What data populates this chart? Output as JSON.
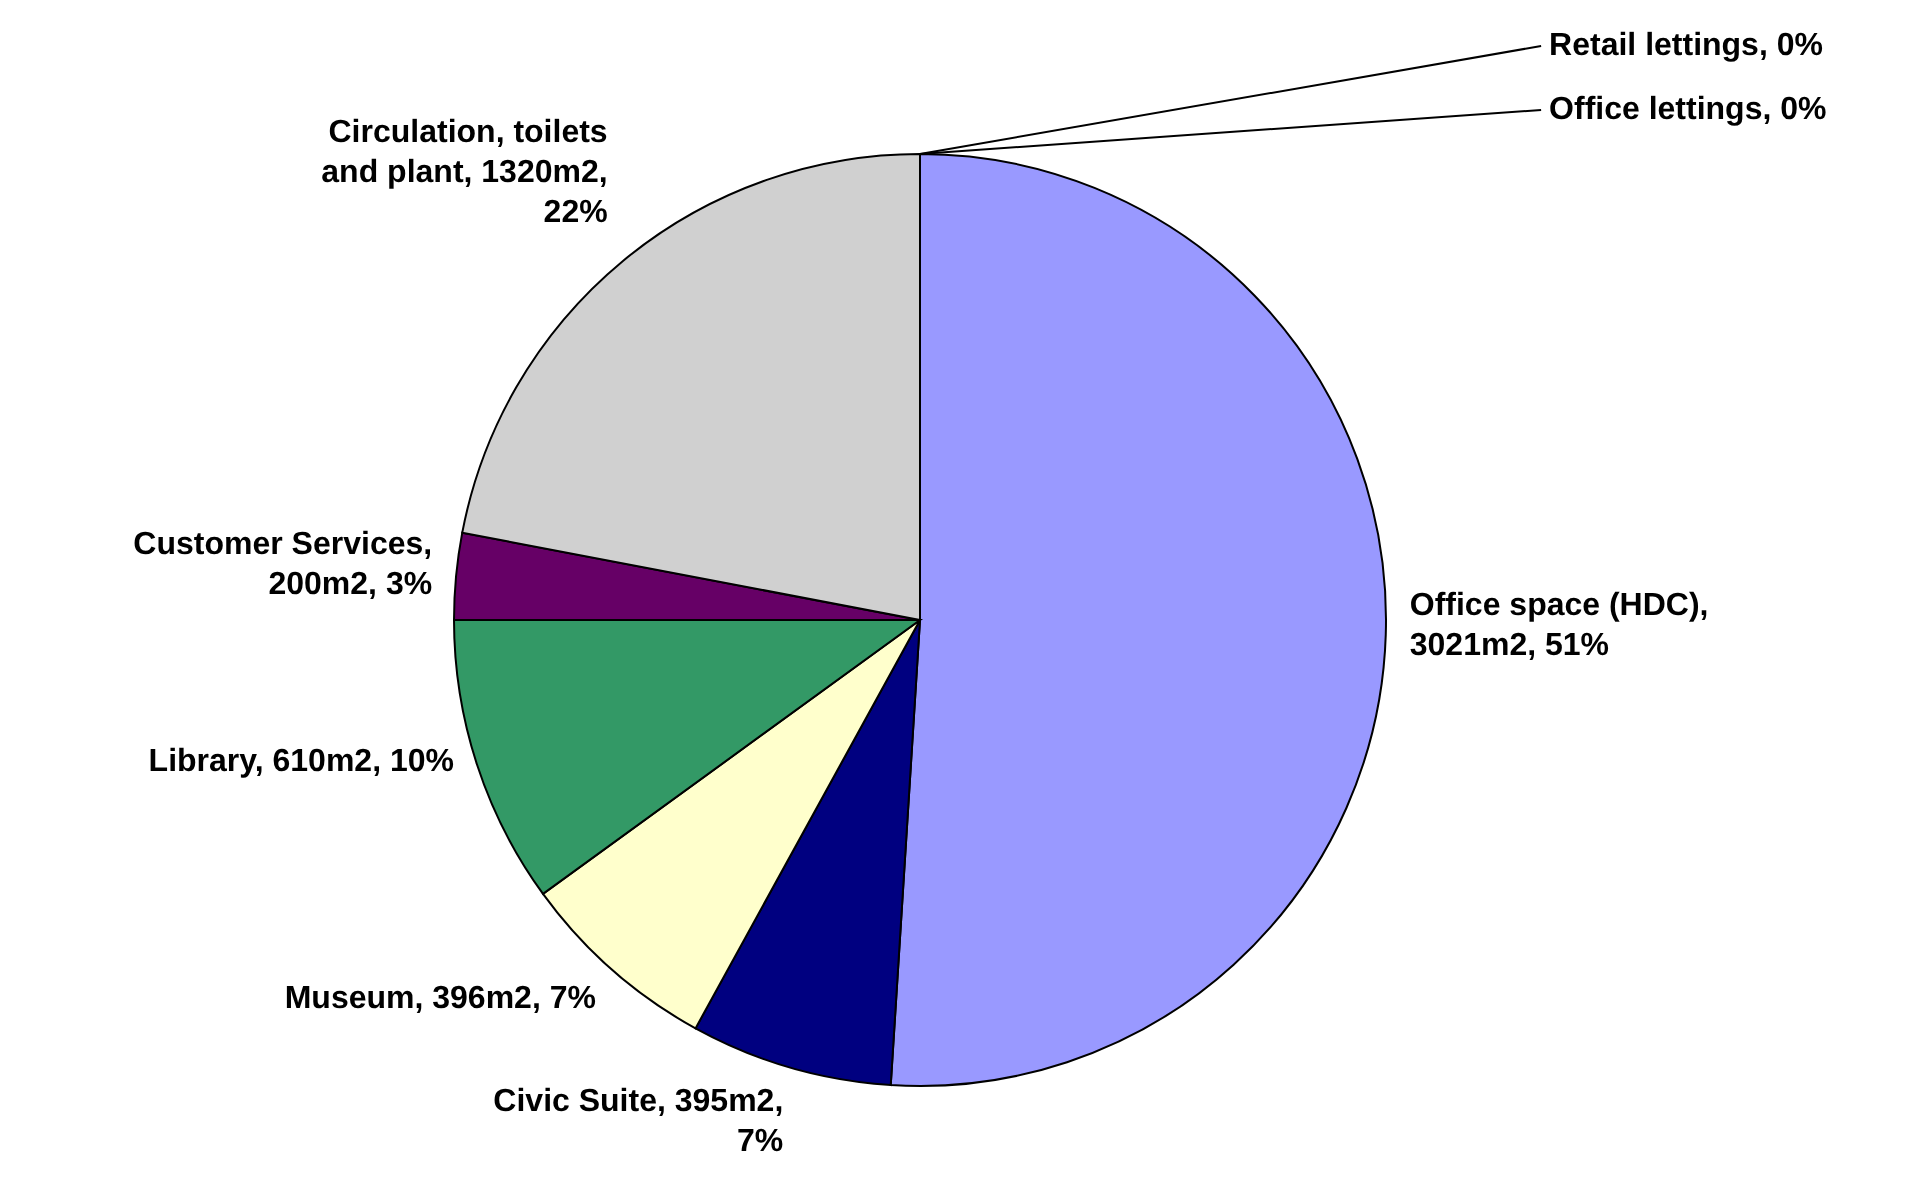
{
  "chart_data": {
    "type": "pie",
    "categories": [
      "Office space (HDC), 3021m2, 51%",
      "Civic Suite, 395m2, 7%",
      "Museum, 396m2, 7%",
      "Library, 610m2, 10%",
      "Customer Services, 200m2, 3%",
      "Circulation, toilets and plant, 1320m2, 22%",
      "Retail lettings, 0%",
      "Office lettings, 0%"
    ],
    "values": [
      51,
      7,
      7,
      10,
      3,
      22,
      0,
      0
    ],
    "colors": [
      "#9999ff",
      "#000080",
      "#ffffcc",
      "#339966",
      "#660066",
      "#d0d0d0",
      "#ff8080",
      "#0066cc"
    ],
    "legend": false
  }
}
